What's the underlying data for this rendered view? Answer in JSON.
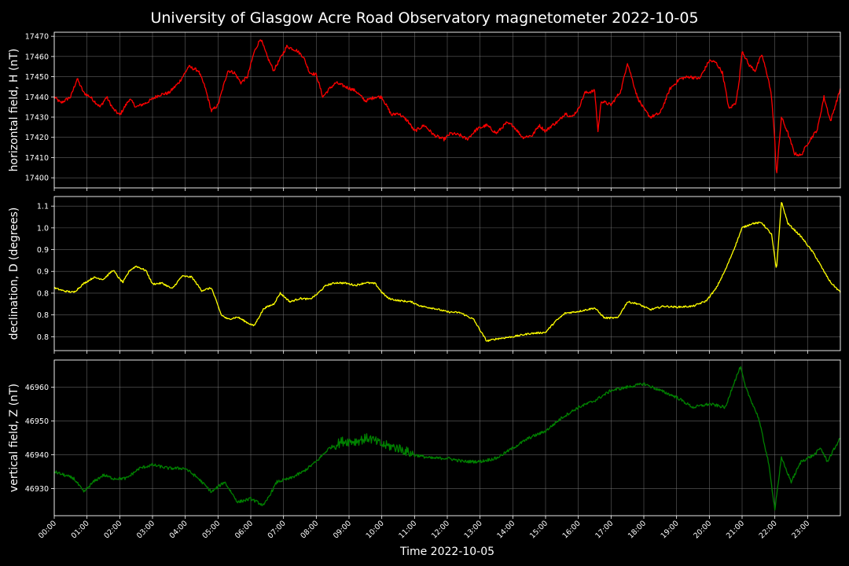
{
  "chart_data": {
    "type": "line",
    "title": "University of Glasgow Acre Road Observatory magnetometer 2022-10-05",
    "xlabel": "Time 2022-10-05",
    "x_ticks": [
      "00:00",
      "01:00",
      "02:00",
      "03:00",
      "04:00",
      "05:00",
      "06:00",
      "07:00",
      "08:00",
      "09:00",
      "10:00",
      "11:00",
      "12:00",
      "13:00",
      "14:00",
      "15:00",
      "16:00",
      "17:00",
      "18:00",
      "19:00",
      "20:00",
      "21:00",
      "22:00",
      "23:00"
    ],
    "xlim": [
      0,
      24
    ],
    "grid": true,
    "panels": [
      {
        "ylabel": "horizontal field, H (nT)",
        "color": "#ff0000",
        "ylim": [
          17395,
          17472
        ],
        "y_ticks": [
          17400,
          17410,
          17420,
          17430,
          17440,
          17450,
          17460,
          17470
        ],
        "noise": 0.8,
        "points": [
          [
            0,
            17440
          ],
          [
            0.2,
            17437
          ],
          [
            0.5,
            17440
          ],
          [
            0.7,
            17449
          ],
          [
            0.9,
            17442
          ],
          [
            1.1,
            17440
          ],
          [
            1.4,
            17435
          ],
          [
            1.6,
            17440
          ],
          [
            1.8,
            17434
          ],
          [
            2.0,
            17431
          ],
          [
            2.3,
            17439
          ],
          [
            2.5,
            17435
          ],
          [
            2.8,
            17437
          ],
          [
            3.2,
            17441
          ],
          [
            3.5,
            17442
          ],
          [
            3.8,
            17447
          ],
          [
            4.0,
            17452
          ],
          [
            4.1,
            17455
          ],
          [
            4.4,
            17453
          ],
          [
            4.6,
            17445
          ],
          [
            4.8,
            17433
          ],
          [
            5.0,
            17436
          ],
          [
            5.3,
            17453
          ],
          [
            5.5,
            17452
          ],
          [
            5.7,
            17447
          ],
          [
            5.9,
            17450
          ],
          [
            6.1,
            17462
          ],
          [
            6.3,
            17469
          ],
          [
            6.5,
            17460
          ],
          [
            6.7,
            17453
          ],
          [
            6.9,
            17459
          ],
          [
            7.1,
            17465
          ],
          [
            7.4,
            17463
          ],
          [
            7.6,
            17460
          ],
          [
            7.8,
            17452
          ],
          [
            8.0,
            17451
          ],
          [
            8.2,
            17440
          ],
          [
            8.4,
            17444
          ],
          [
            8.6,
            17447
          ],
          [
            8.9,
            17445
          ],
          [
            9.2,
            17443
          ],
          [
            9.5,
            17438
          ],
          [
            9.8,
            17440
          ],
          [
            10.0,
            17440
          ],
          [
            10.3,
            17431
          ],
          [
            10.5,
            17432
          ],
          [
            10.8,
            17428
          ],
          [
            11.0,
            17423
          ],
          [
            11.3,
            17426
          ],
          [
            11.6,
            17421
          ],
          [
            11.9,
            17419
          ],
          [
            12.1,
            17422
          ],
          [
            12.4,
            17421
          ],
          [
            12.6,
            17419
          ],
          [
            12.9,
            17424
          ],
          [
            13.2,
            17426
          ],
          [
            13.5,
            17422
          ],
          [
            13.8,
            17427
          ],
          [
            14.0,
            17426
          ],
          [
            14.3,
            17420
          ],
          [
            14.6,
            17421
          ],
          [
            14.8,
            17426
          ],
          [
            15.0,
            17423
          ],
          [
            15.2,
            17426
          ],
          [
            15.4,
            17428
          ],
          [
            15.6,
            17432
          ],
          [
            15.8,
            17430
          ],
          [
            16.0,
            17434
          ],
          [
            16.2,
            17442
          ],
          [
            16.5,
            17443
          ],
          [
            16.6,
            17423
          ],
          [
            16.7,
            17438
          ],
          [
            17.0,
            17436
          ],
          [
            17.3,
            17443
          ],
          [
            17.5,
            17457
          ],
          [
            17.8,
            17440
          ],
          [
            18.0,
            17434
          ],
          [
            18.2,
            17430
          ],
          [
            18.5,
            17432
          ],
          [
            18.8,
            17444
          ],
          [
            19.1,
            17449
          ],
          [
            19.4,
            17450
          ],
          [
            19.7,
            17449
          ],
          [
            20.0,
            17458
          ],
          [
            20.2,
            17457
          ],
          [
            20.4,
            17452
          ],
          [
            20.5,
            17443
          ],
          [
            20.6,
            17434
          ],
          [
            20.8,
            17437
          ],
          [
            20.9,
            17446
          ],
          [
            21.0,
            17463
          ],
          [
            21.2,
            17456
          ],
          [
            21.4,
            17453
          ],
          [
            21.6,
            17461
          ],
          [
            21.8,
            17449
          ],
          [
            21.9,
            17440
          ],
          [
            22.0,
            17418
          ],
          [
            22.05,
            17401
          ],
          [
            22.2,
            17430
          ],
          [
            22.4,
            17422
          ],
          [
            22.6,
            17412
          ],
          [
            22.8,
            17411
          ],
          [
            23.0,
            17417
          ],
          [
            23.3,
            17424
          ],
          [
            23.5,
            17440
          ],
          [
            23.7,
            17428
          ],
          [
            24.0,
            17444
          ]
        ]
      },
      {
        "ylabel": "declination, D (degrees)",
        "color": "#ffff00",
        "ylim": [
          0.718,
          1.072
        ],
        "y_ticks": [
          0.75,
          0.8,
          0.85,
          0.9,
          0.95,
          1.0,
          1.05
        ],
        "noise": 0.002,
        "points": [
          [
            0,
            0.862
          ],
          [
            0.3,
            0.855
          ],
          [
            0.6,
            0.852
          ],
          [
            0.9,
            0.872
          ],
          [
            1.2,
            0.886
          ],
          [
            1.5,
            0.882
          ],
          [
            1.8,
            0.903
          ],
          [
            2.0,
            0.882
          ],
          [
            2.1,
            0.875
          ],
          [
            2.3,
            0.902
          ],
          [
            2.5,
            0.912
          ],
          [
            2.8,
            0.902
          ],
          [
            3.0,
            0.871
          ],
          [
            3.3,
            0.873
          ],
          [
            3.6,
            0.86
          ],
          [
            3.9,
            0.889
          ],
          [
            4.2,
            0.887
          ],
          [
            4.5,
            0.856
          ],
          [
            4.8,
            0.862
          ],
          [
            5.1,
            0.8
          ],
          [
            5.3,
            0.79
          ],
          [
            5.6,
            0.795
          ],
          [
            5.9,
            0.782
          ],
          [
            6.1,
            0.775
          ],
          [
            6.4,
            0.815
          ],
          [
            6.7,
            0.825
          ],
          [
            6.9,
            0.85
          ],
          [
            7.2,
            0.83
          ],
          [
            7.5,
            0.838
          ],
          [
            7.8,
            0.836
          ],
          [
            8.0,
            0.846
          ],
          [
            8.3,
            0.868
          ],
          [
            8.6,
            0.874
          ],
          [
            8.9,
            0.873
          ],
          [
            9.2,
            0.868
          ],
          [
            9.5,
            0.874
          ],
          [
            9.8,
            0.872
          ],
          [
            10.0,
            0.852
          ],
          [
            10.2,
            0.838
          ],
          [
            10.5,
            0.833
          ],
          [
            10.9,
            0.83
          ],
          [
            11.2,
            0.82
          ],
          [
            11.6,
            0.815
          ],
          [
            12.0,
            0.807
          ],
          [
            12.4,
            0.805
          ],
          [
            12.8,
            0.79
          ],
          [
            13.0,
            0.765
          ],
          [
            13.2,
            0.74
          ],
          [
            13.5,
            0.745
          ],
          [
            14.0,
            0.75
          ],
          [
            14.5,
            0.757
          ],
          [
            15.0,
            0.76
          ],
          [
            15.3,
            0.785
          ],
          [
            15.6,
            0.804
          ],
          [
            16.0,
            0.808
          ],
          [
            16.5,
            0.816
          ],
          [
            16.8,
            0.793
          ],
          [
            17.2,
            0.793
          ],
          [
            17.5,
            0.83
          ],
          [
            17.8,
            0.826
          ],
          [
            18.2,
            0.812
          ],
          [
            18.6,
            0.82
          ],
          [
            19.0,
            0.818
          ],
          [
            19.5,
            0.82
          ],
          [
            19.9,
            0.832
          ],
          [
            20.2,
            0.86
          ],
          [
            20.5,
            0.905
          ],
          [
            20.8,
            0.96
          ],
          [
            21.0,
            1.0
          ],
          [
            21.3,
            1.01
          ],
          [
            21.6,
            1.012
          ],
          [
            21.9,
            0.985
          ],
          [
            22.05,
            0.902
          ],
          [
            22.2,
            1.06
          ],
          [
            22.4,
            1.01
          ],
          [
            22.8,
            0.98
          ],
          [
            23.2,
            0.94
          ],
          [
            23.5,
            0.9
          ],
          [
            23.7,
            0.875
          ],
          [
            24.0,
            0.852
          ]
        ]
      },
      {
        "ylabel": "vertical field, Z (nT)",
        "color": "#008000",
        "ylim": [
          46922,
          46968
        ],
        "y_ticks": [
          46930,
          46940,
          46950,
          46960
        ],
        "noise": 0.45,
        "points": [
          [
            0,
            46935
          ],
          [
            0.3,
            46934
          ],
          [
            0.6,
            46933
          ],
          [
            0.9,
            46929
          ],
          [
            1.2,
            46932
          ],
          [
            1.5,
            46934
          ],
          [
            1.8,
            46933
          ],
          [
            2.2,
            46933
          ],
          [
            2.6,
            46936
          ],
          [
            3.0,
            46937
          ],
          [
            3.5,
            46936
          ],
          [
            4.0,
            46936
          ],
          [
            4.4,
            46933
          ],
          [
            4.8,
            46929
          ],
          [
            5.2,
            46932
          ],
          [
            5.6,
            46926
          ],
          [
            6.0,
            46927
          ],
          [
            6.4,
            46925
          ],
          [
            6.8,
            46932
          ],
          [
            7.2,
            46933
          ],
          [
            7.6,
            46935
          ],
          [
            8.0,
            46938
          ],
          [
            8.4,
            46942
          ],
          [
            8.8,
            46944
          ],
          [
            9.2,
            46944
          ],
          [
            9.6,
            46945
          ],
          [
            10.0,
            46943
          ],
          [
            10.5,
            46942
          ],
          [
            11.0,
            46940
          ],
          [
            11.5,
            46939
          ],
          [
            12.0,
            46939
          ],
          [
            12.5,
            46938
          ],
          [
            13.0,
            46938
          ],
          [
            13.5,
            46939
          ],
          [
            14.0,
            46942
          ],
          [
            14.5,
            46945
          ],
          [
            15.0,
            46947
          ],
          [
            15.5,
            46951
          ],
          [
            16.0,
            46954
          ],
          [
            16.5,
            46956
          ],
          [
            17.0,
            46959
          ],
          [
            17.5,
            46960
          ],
          [
            18.0,
            46961
          ],
          [
            18.5,
            46959
          ],
          [
            19.0,
            46957
          ],
          [
            19.5,
            46954
          ],
          [
            20.0,
            46955
          ],
          [
            20.5,
            46954
          ],
          [
            20.7,
            46960
          ],
          [
            20.95,
            46966
          ],
          [
            21.1,
            46960
          ],
          [
            21.5,
            46951
          ],
          [
            21.8,
            46938
          ],
          [
            22.0,
            46924
          ],
          [
            22.2,
            46939
          ],
          [
            22.5,
            46932
          ],
          [
            22.8,
            46938
          ],
          [
            23.2,
            46940
          ],
          [
            23.4,
            46942
          ],
          [
            23.6,
            46938
          ],
          [
            24.0,
            46945
          ]
        ]
      }
    ]
  }
}
